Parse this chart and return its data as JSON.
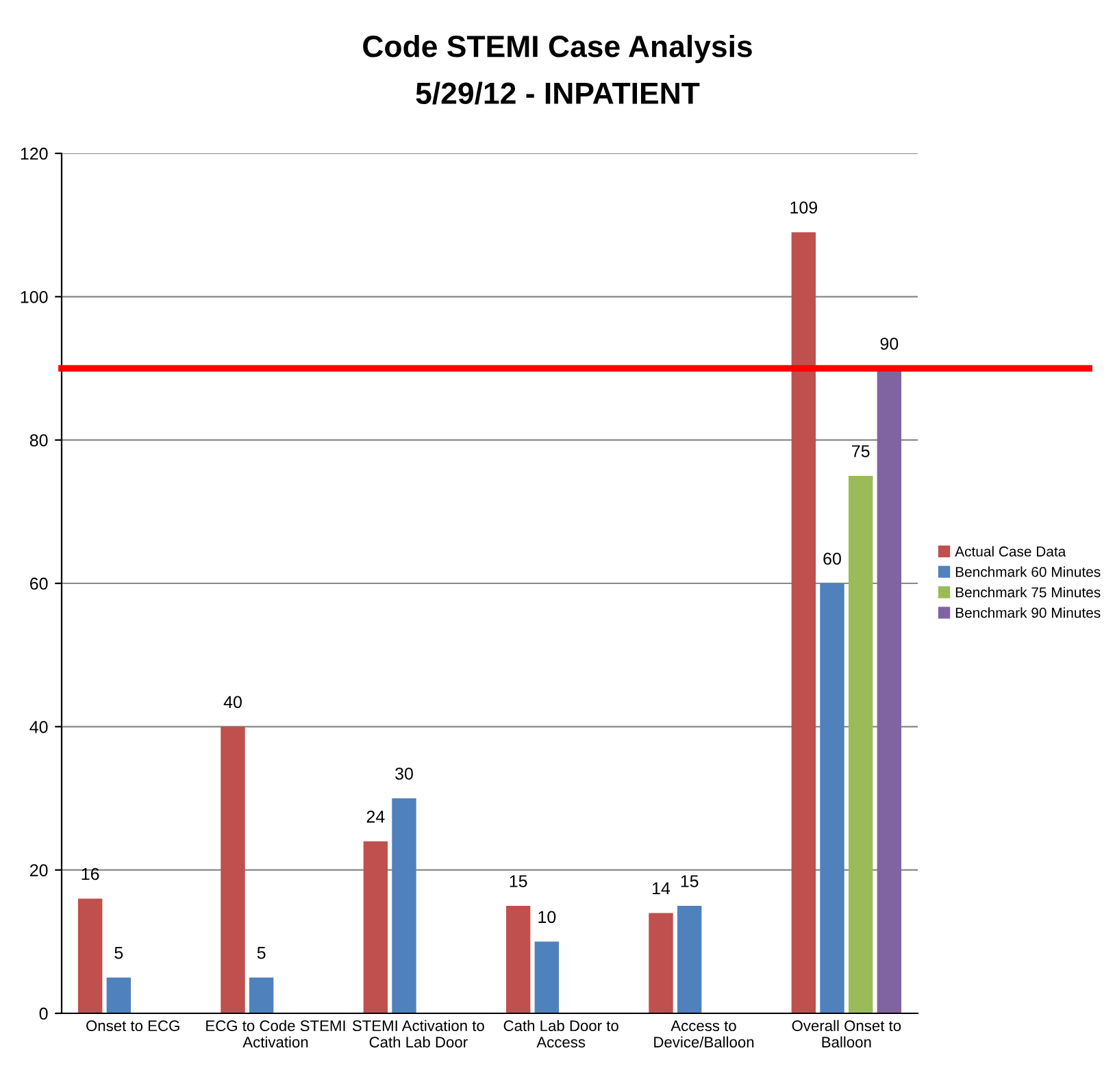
{
  "chart_data": {
    "type": "bar",
    "title": "Code STEMI Case Analysis",
    "subtitle": "5/29/12 - INPATIENT",
    "categories": [
      "Onset to ECG",
      "ECG to Code STEMI\nActivation",
      "STEMI Activation to\nCath Lab Door",
      "Cath Lab Door to\nAccess",
      "Access to\nDevice/Balloon",
      "Overall Onset to\nBalloon"
    ],
    "series": [
      {
        "name": "Actual Case Data",
        "color": "#c0504d",
        "values": [
          16,
          40,
          24,
          15,
          14,
          109
        ]
      },
      {
        "name": "Benchmark 60 Minutes",
        "color": "#4f81bd",
        "values": [
          5,
          5,
          30,
          10,
          15,
          60
        ]
      },
      {
        "name": "Benchmark 75 Minutes",
        "color": "#9bbb59",
        "values": [
          null,
          null,
          null,
          null,
          null,
          75
        ]
      },
      {
        "name": "Benchmark 90 Minutes",
        "color": "#8064a2",
        "values": [
          null,
          null,
          null,
          null,
          null,
          90
        ]
      }
    ],
    "ylim": [
      0,
      120
    ],
    "yticks": [
      0,
      20,
      40,
      60,
      80,
      100,
      120
    ],
    "grid": "y",
    "legend": "right",
    "data_labels": true,
    "ref_lines": [
      {
        "axis": "y",
        "value": 90,
        "color": "#ff0000"
      }
    ]
  }
}
